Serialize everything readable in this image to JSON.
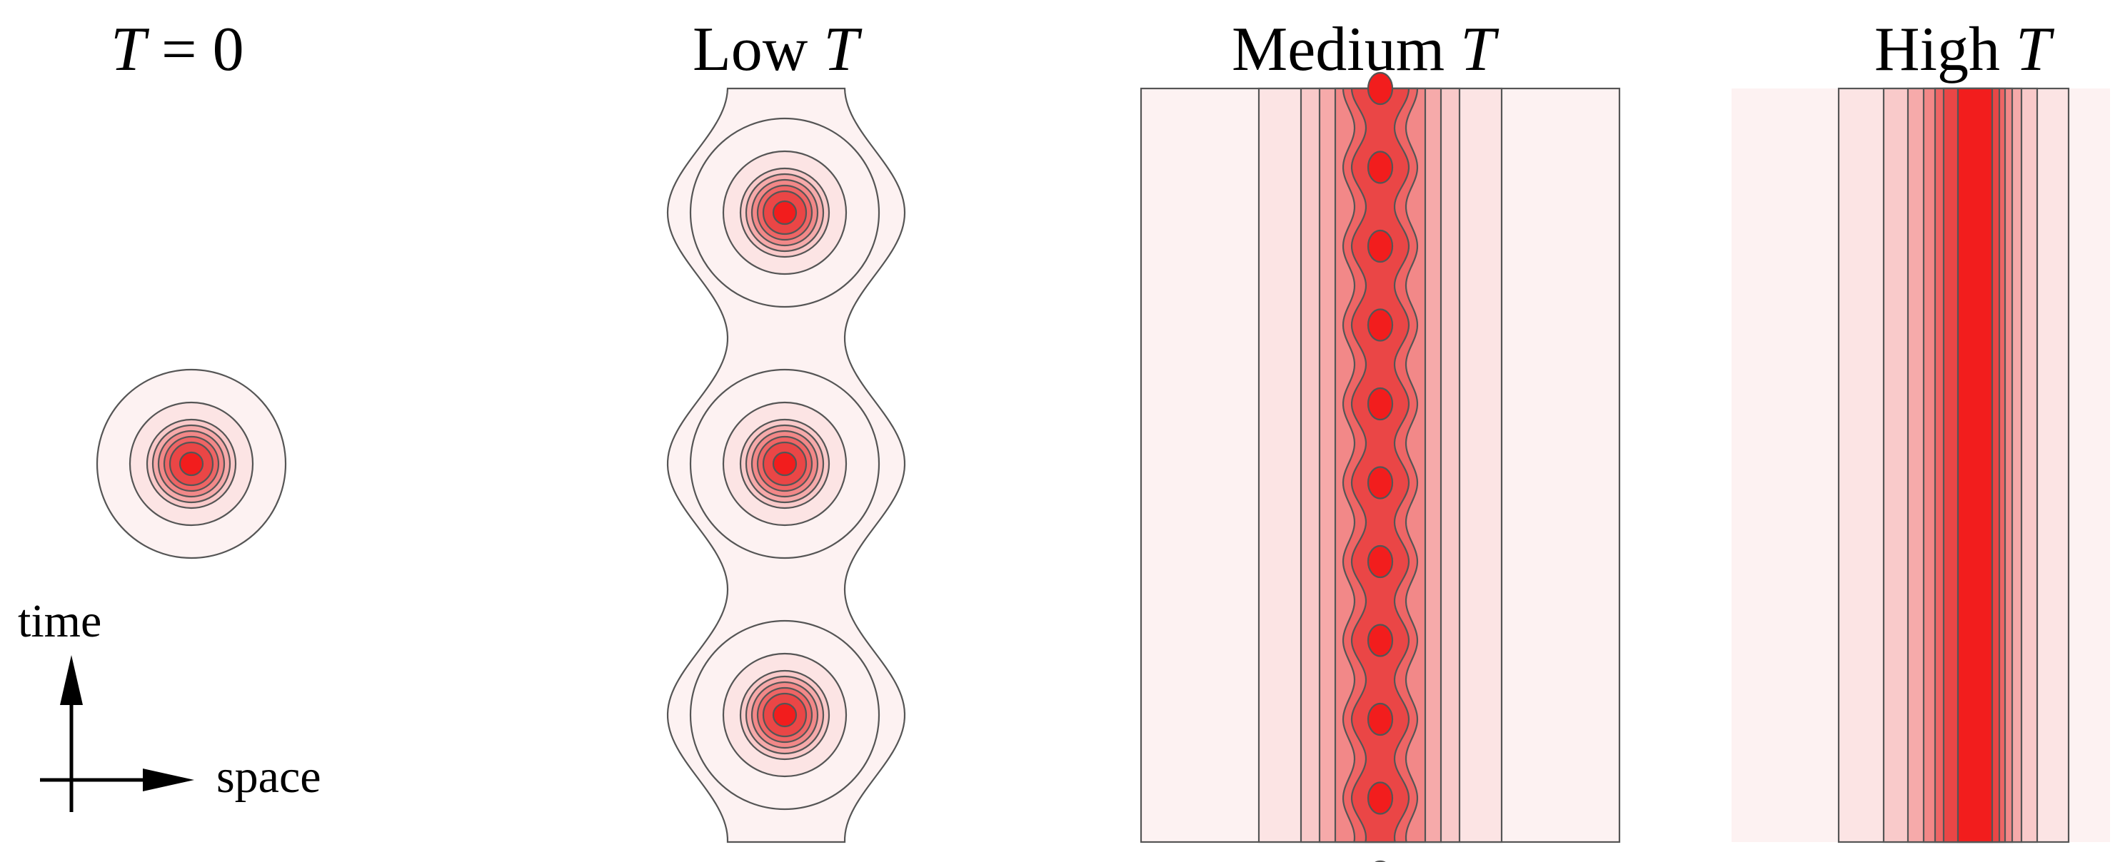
{
  "panels": [
    {
      "id": "t0",
      "title_main": "T",
      "title_rest": " = 0",
      "title_order": "var-first"
    },
    {
      "id": "low",
      "title_main": "T",
      "title_rest": "Low ",
      "title_order": "var-last"
    },
    {
      "id": "medium",
      "title_main": "T",
      "title_rest": "Medium ",
      "title_order": "var-last"
    },
    {
      "id": "high",
      "title_main": "T",
      "title_rest": "High ",
      "title_order": "var-last"
    }
  ],
  "axes": {
    "time_label": "time",
    "space_label": "space"
  },
  "colors": {
    "contour_levels": [
      "#fdf2f2",
      "#fce4e4",
      "#f9caca",
      "#f6aaaa",
      "#f28888",
      "#ee6565",
      "#ea4646",
      "#f21d1d"
    ],
    "outline": "#555555"
  }
}
